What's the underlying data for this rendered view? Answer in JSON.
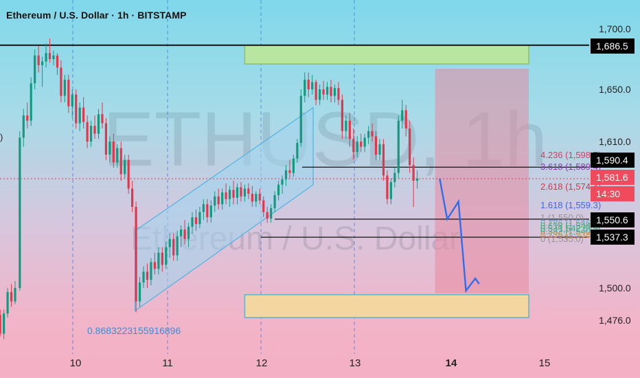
{
  "header": {
    "title": "Ethereum / U.S. Dollar · 1h · BITSTAMP"
  },
  "watermark": {
    "symbol": "ETHUSD, 1h",
    "name": "Ethereum / U.S. Dollar"
  },
  "colors": {
    "up": "#139a7e",
    "down": "#e2364b",
    "fib_blue": "#3b66f0",
    "zone_green": "#b8e6a0",
    "zone_orange": "#f4d6a0",
    "zone_red": "#e88aa0",
    "channel": "#9fd6ef"
  },
  "chart_data": {
    "type": "candlestick",
    "symbol": "ETHUSD",
    "interval": "1h",
    "exchange": "BITSTAMP",
    "x_ticks": [
      "10",
      "11",
      "12",
      "13",
      "14",
      "15"
    ],
    "y_ticks": [
      "1,700.0",
      "1,650.0",
      "1,610.0",
      "1,550.0",
      "1,500.0",
      "1,476.0"
    ],
    "ylim": [
      1460,
      1712
    ],
    "price_labels": [
      {
        "text": "1,686.5",
        "style": "black"
      },
      {
        "text": "1,590.4",
        "style": "black"
      },
      {
        "text": "1,581.6",
        "style": "red"
      },
      {
        "text": "14:30",
        "style": "red"
      },
      {
        "text": "1,550.6",
        "style": "black"
      },
      {
        "text": "1,537.3",
        "style": "black"
      }
    ],
    "fib_levels": [
      {
        "text": "4.236 (1,598.7)",
        "price": 1598.7,
        "color": "#d83a63"
      },
      {
        "text": "3.618 (1,589.4)",
        "price": 1589.4,
        "color": "#8a3ab0"
      },
      {
        "text": "2.618 (1,574.4)",
        "price": 1574.4,
        "color": "#e0304a"
      },
      {
        "text": "1.618 (1,559.3)",
        "price": 1559.3,
        "color": "#3b66f0"
      },
      {
        "text": "1 (1,550.0)",
        "price": 1550.0,
        "color": "#8a8a8a"
      },
      {
        "text": "0.786 (1,546.8)",
        "price": 1546.8,
        "color": "#5aa0c8"
      },
      {
        "text": "0.618 (1,544.3)",
        "price": 1544.3,
        "color": "#4cae4c"
      },
      {
        "text": "0.5 (1,542.5)",
        "price": 1542.5,
        "color": "#3aa58a"
      },
      {
        "text": "0.382 (1,540.7)",
        "price": 1540.7,
        "color": "#3aa58a"
      },
      {
        "text": "0.236 (1,538.6)",
        "price": 1538.6,
        "color": "#e88a2a"
      },
      {
        "text": "0 (1,535.0)",
        "price": 1535.0,
        "color": "#8a8a8a"
      }
    ],
    "annotation": "0.8683223155916896",
    "horizontal_lines": [
      1686.5,
      1590.4,
      1550.6,
      1537.3
    ],
    "current_price": 1581.6,
    "zones": [
      {
        "name": "supply",
        "x": [
          11.82,
          14.85
        ],
        "y": [
          1671,
          1686.5
        ]
      },
      {
        "name": "demand",
        "x": [
          11.82,
          14.85
        ],
        "y": [
          1478,
          1495
        ]
      },
      {
        "name": "short-target",
        "x": [
          13.85,
          14.85
        ],
        "y": [
          1496,
          1667
        ]
      }
    ],
    "channel": {
      "lower": [
        [
          10.65,
          1483
        ],
        [
          12.55,
          1577
        ]
      ],
      "upper": [
        [
          10.65,
          1542
        ],
        [
          12.55,
          1636
        ]
      ]
    },
    "projection_path": [
      [
        13.9,
        1581.6
      ],
      [
        13.98,
        1550.6
      ],
      [
        14.1,
        1564
      ],
      [
        14.18,
        1498
      ],
      [
        14.28,
        1507
      ],
      [
        14.32,
        1503
      ]
    ],
    "candles": [
      {
        "t": 8.93,
        "o": 1484,
        "h": 1490,
        "l": 1466,
        "c": 1476
      },
      {
        "t": 8.97,
        "o": 1476,
        "h": 1480,
        "l": 1463,
        "c": 1468
      },
      {
        "t": 9.01,
        "o": 1468,
        "h": 1488,
        "l": 1466,
        "c": 1484
      },
      {
        "t": 9.05,
        "o": 1484,
        "h": 1490,
        "l": 1470,
        "c": 1473
      },
      {
        "t": 9.09,
        "o": 1473,
        "h": 1478,
        "l": 1462,
        "c": 1470
      },
      {
        "t": 9.13,
        "o": 1470,
        "h": 1492,
        "l": 1468,
        "c": 1488
      },
      {
        "t": 9.17,
        "o": 1488,
        "h": 1494,
        "l": 1478,
        "c": 1480
      },
      {
        "t": 9.21,
        "o": 1480,
        "h": 1484,
        "l": 1464,
        "c": 1466
      },
      {
        "t": 9.25,
        "o": 1466,
        "h": 1484,
        "l": 1462,
        "c": 1481
      },
      {
        "t": 9.29,
        "o": 1481,
        "h": 1500,
        "l": 1478,
        "c": 1497
      },
      {
        "t": 9.33,
        "o": 1497,
        "h": 1503,
        "l": 1486,
        "c": 1490
      },
      {
        "t": 9.37,
        "o": 1490,
        "h": 1505,
        "l": 1488,
        "c": 1500
      },
      {
        "t": 9.42,
        "o": 1500,
        "h": 1618,
        "l": 1498,
        "c": 1613
      },
      {
        "t": 9.46,
        "o": 1613,
        "h": 1635,
        "l": 1606,
        "c": 1630
      },
      {
        "t": 9.5,
        "o": 1630,
        "h": 1640,
        "l": 1620,
        "c": 1626
      },
      {
        "t": 9.54,
        "o": 1626,
        "h": 1660,
        "l": 1622,
        "c": 1655
      },
      {
        "t": 9.58,
        "o": 1655,
        "h": 1683,
        "l": 1650,
        "c": 1678
      },
      {
        "t": 9.62,
        "o": 1678,
        "h": 1686,
        "l": 1664,
        "c": 1670
      },
      {
        "t": 9.66,
        "o": 1670,
        "h": 1677,
        "l": 1652,
        "c": 1673
      },
      {
        "t": 9.7,
        "o": 1673,
        "h": 1688,
        "l": 1668,
        "c": 1680
      },
      {
        "t": 9.74,
        "o": 1680,
        "h": 1692,
        "l": 1672,
        "c": 1675
      },
      {
        "t": 9.78,
        "o": 1675,
        "h": 1682,
        "l": 1670,
        "c": 1678
      },
      {
        "t": 9.82,
        "o": 1678,
        "h": 1680,
        "l": 1662,
        "c": 1668
      },
      {
        "t": 9.86,
        "o": 1668,
        "h": 1674,
        "l": 1640,
        "c": 1645
      },
      {
        "t": 9.9,
        "o": 1645,
        "h": 1662,
        "l": 1640,
        "c": 1658
      },
      {
        "t": 9.94,
        "o": 1658,
        "h": 1662,
        "l": 1632,
        "c": 1637
      },
      {
        "t": 9.98,
        "o": 1637,
        "h": 1650,
        "l": 1628,
        "c": 1646
      },
      {
        "t": 10.02,
        "o": 1646,
        "h": 1650,
        "l": 1620,
        "c": 1624
      },
      {
        "t": 10.06,
        "o": 1624,
        "h": 1640,
        "l": 1618,
        "c": 1636
      },
      {
        "t": 10.1,
        "o": 1636,
        "h": 1644,
        "l": 1620,
        "c": 1625
      },
      {
        "t": 10.14,
        "o": 1625,
        "h": 1630,
        "l": 1605,
        "c": 1610
      },
      {
        "t": 10.18,
        "o": 1610,
        "h": 1626,
        "l": 1606,
        "c": 1622
      },
      {
        "t": 10.22,
        "o": 1622,
        "h": 1630,
        "l": 1612,
        "c": 1616
      },
      {
        "t": 10.26,
        "o": 1616,
        "h": 1635,
        "l": 1612,
        "c": 1631
      },
      {
        "t": 10.3,
        "o": 1631,
        "h": 1640,
        "l": 1620,
        "c": 1624
      },
      {
        "t": 10.34,
        "o": 1624,
        "h": 1628,
        "l": 1596,
        "c": 1600
      },
      {
        "t": 10.38,
        "o": 1600,
        "h": 1614,
        "l": 1594,
        "c": 1610
      },
      {
        "t": 10.42,
        "o": 1610,
        "h": 1616,
        "l": 1590,
        "c": 1594
      },
      {
        "t": 10.46,
        "o": 1594,
        "h": 1608,
        "l": 1590,
        "c": 1605
      },
      {
        "t": 10.5,
        "o": 1605,
        "h": 1610,
        "l": 1580,
        "c": 1585
      },
      {
        "t": 10.54,
        "o": 1585,
        "h": 1600,
        "l": 1582,
        "c": 1596
      },
      {
        "t": 10.58,
        "o": 1596,
        "h": 1600,
        "l": 1570,
        "c": 1574
      },
      {
        "t": 10.62,
        "o": 1574,
        "h": 1580,
        "l": 1556,
        "c": 1560
      },
      {
        "t": 10.66,
        "o": 1560,
        "h": 1564,
        "l": 1482,
        "c": 1490
      },
      {
        "t": 10.7,
        "o": 1490,
        "h": 1508,
        "l": 1486,
        "c": 1504
      },
      {
        "t": 10.74,
        "o": 1504,
        "h": 1516,
        "l": 1500,
        "c": 1512
      },
      {
        "t": 10.78,
        "o": 1512,
        "h": 1518,
        "l": 1500,
        "c": 1506
      },
      {
        "t": 10.82,
        "o": 1506,
        "h": 1522,
        "l": 1502,
        "c": 1519
      },
      {
        "t": 10.86,
        "o": 1519,
        "h": 1526,
        "l": 1510,
        "c": 1514
      },
      {
        "t": 10.9,
        "o": 1514,
        "h": 1530,
        "l": 1510,
        "c": 1526
      },
      {
        "t": 10.94,
        "o": 1526,
        "h": 1530,
        "l": 1512,
        "c": 1517
      },
      {
        "t": 10.98,
        "o": 1517,
        "h": 1534,
        "l": 1514,
        "c": 1530
      },
      {
        "t": 11.02,
        "o": 1530,
        "h": 1540,
        "l": 1522,
        "c": 1536
      },
      {
        "t": 11.06,
        "o": 1536,
        "h": 1540,
        "l": 1520,
        "c": 1524
      },
      {
        "t": 11.1,
        "o": 1524,
        "h": 1542,
        "l": 1520,
        "c": 1538
      },
      {
        "t": 11.14,
        "o": 1538,
        "h": 1546,
        "l": 1530,
        "c": 1543
      },
      {
        "t": 11.18,
        "o": 1543,
        "h": 1550,
        "l": 1532,
        "c": 1536
      },
      {
        "t": 11.22,
        "o": 1536,
        "h": 1548,
        "l": 1530,
        "c": 1545
      },
      {
        "t": 11.26,
        "o": 1545,
        "h": 1556,
        "l": 1540,
        "c": 1552
      },
      {
        "t": 11.3,
        "o": 1552,
        "h": 1558,
        "l": 1542,
        "c": 1547
      },
      {
        "t": 11.34,
        "o": 1547,
        "h": 1560,
        "l": 1544,
        "c": 1556
      },
      {
        "t": 11.38,
        "o": 1556,
        "h": 1566,
        "l": 1550,
        "c": 1562
      },
      {
        "t": 11.42,
        "o": 1562,
        "h": 1566,
        "l": 1548,
        "c": 1552
      },
      {
        "t": 11.46,
        "o": 1552,
        "h": 1565,
        "l": 1548,
        "c": 1561
      },
      {
        "t": 11.5,
        "o": 1561,
        "h": 1572,
        "l": 1556,
        "c": 1568
      },
      {
        "t": 11.54,
        "o": 1568,
        "h": 1574,
        "l": 1558,
        "c": 1562
      },
      {
        "t": 11.58,
        "o": 1562,
        "h": 1574,
        "l": 1558,
        "c": 1571
      },
      {
        "t": 11.62,
        "o": 1571,
        "h": 1578,
        "l": 1562,
        "c": 1566
      },
      {
        "t": 11.66,
        "o": 1566,
        "h": 1576,
        "l": 1560,
        "c": 1573
      },
      {
        "t": 11.7,
        "o": 1573,
        "h": 1580,
        "l": 1562,
        "c": 1567
      },
      {
        "t": 11.74,
        "o": 1567,
        "h": 1578,
        "l": 1562,
        "c": 1575
      },
      {
        "t": 11.78,
        "o": 1575,
        "h": 1579,
        "l": 1564,
        "c": 1568
      },
      {
        "t": 11.82,
        "o": 1568,
        "h": 1577,
        "l": 1564,
        "c": 1574
      },
      {
        "t": 11.86,
        "o": 1574,
        "h": 1578,
        "l": 1566,
        "c": 1570
      },
      {
        "t": 11.9,
        "o": 1570,
        "h": 1576,
        "l": 1560,
        "c": 1564
      },
      {
        "t": 11.94,
        "o": 1564,
        "h": 1572,
        "l": 1560,
        "c": 1570
      },
      {
        "t": 11.98,
        "o": 1570,
        "h": 1574,
        "l": 1562,
        "c": 1565
      },
      {
        "t": 12.02,
        "o": 1565,
        "h": 1568,
        "l": 1552,
        "c": 1556
      },
      {
        "t": 12.06,
        "o": 1556,
        "h": 1560,
        "l": 1548,
        "c": 1551
      },
      {
        "t": 12.1,
        "o": 1551,
        "h": 1562,
        "l": 1548,
        "c": 1559
      },
      {
        "t": 12.14,
        "o": 1559,
        "h": 1572,
        "l": 1556,
        "c": 1569
      },
      {
        "t": 12.18,
        "o": 1569,
        "h": 1580,
        "l": 1565,
        "c": 1577
      },
      {
        "t": 12.22,
        "o": 1577,
        "h": 1584,
        "l": 1570,
        "c": 1581
      },
      {
        "t": 12.26,
        "o": 1581,
        "h": 1592,
        "l": 1576,
        "c": 1588
      },
      {
        "t": 12.3,
        "o": 1588,
        "h": 1596,
        "l": 1582,
        "c": 1586
      },
      {
        "t": 12.34,
        "o": 1586,
        "h": 1600,
        "l": 1583,
        "c": 1597
      },
      {
        "t": 12.38,
        "o": 1597,
        "h": 1612,
        "l": 1594,
        "c": 1609
      },
      {
        "t": 12.42,
        "o": 1609,
        "h": 1650,
        "l": 1606,
        "c": 1645
      },
      {
        "t": 12.46,
        "o": 1645,
        "h": 1664,
        "l": 1640,
        "c": 1658
      },
      {
        "t": 12.5,
        "o": 1658,
        "h": 1664,
        "l": 1644,
        "c": 1650
      },
      {
        "t": 12.54,
        "o": 1650,
        "h": 1662,
        "l": 1646,
        "c": 1656
      },
      {
        "t": 12.58,
        "o": 1656,
        "h": 1658,
        "l": 1638,
        "c": 1642
      },
      {
        "t": 12.62,
        "o": 1642,
        "h": 1654,
        "l": 1638,
        "c": 1650
      },
      {
        "t": 12.66,
        "o": 1650,
        "h": 1657,
        "l": 1642,
        "c": 1646
      },
      {
        "t": 12.7,
        "o": 1646,
        "h": 1656,
        "l": 1642,
        "c": 1652
      },
      {
        "t": 12.74,
        "o": 1652,
        "h": 1658,
        "l": 1640,
        "c": 1645
      },
      {
        "t": 12.78,
        "o": 1645,
        "h": 1654,
        "l": 1640,
        "c": 1651
      },
      {
        "t": 12.82,
        "o": 1651,
        "h": 1656,
        "l": 1638,
        "c": 1642
      },
      {
        "t": 12.86,
        "o": 1642,
        "h": 1646,
        "l": 1612,
        "c": 1618
      },
      {
        "t": 12.9,
        "o": 1618,
        "h": 1630,
        "l": 1612,
        "c": 1626
      },
      {
        "t": 12.94,
        "o": 1626,
        "h": 1632,
        "l": 1606,
        "c": 1612
      },
      {
        "t": 12.98,
        "o": 1612,
        "h": 1620,
        "l": 1596,
        "c": 1602
      },
      {
        "t": 13.02,
        "o": 1602,
        "h": 1614,
        "l": 1598,
        "c": 1610
      },
      {
        "t": 13.06,
        "o": 1610,
        "h": 1616,
        "l": 1602,
        "c": 1606
      },
      {
        "t": 13.1,
        "o": 1606,
        "h": 1616,
        "l": 1602,
        "c": 1613
      },
      {
        "t": 13.14,
        "o": 1613,
        "h": 1622,
        "l": 1608,
        "c": 1618
      },
      {
        "t": 13.18,
        "o": 1618,
        "h": 1624,
        "l": 1610,
        "c": 1614
      },
      {
        "t": 13.22,
        "o": 1614,
        "h": 1618,
        "l": 1596,
        "c": 1600
      },
      {
        "t": 13.26,
        "o": 1600,
        "h": 1612,
        "l": 1596,
        "c": 1608
      },
      {
        "t": 13.3,
        "o": 1608,
        "h": 1612,
        "l": 1580,
        "c": 1584
      },
      {
        "t": 13.34,
        "o": 1584,
        "h": 1588,
        "l": 1562,
        "c": 1566
      },
      {
        "t": 13.38,
        "o": 1566,
        "h": 1582,
        "l": 1562,
        "c": 1579
      },
      {
        "t": 13.42,
        "o": 1579,
        "h": 1590,
        "l": 1575,
        "c": 1586
      },
      {
        "t": 13.46,
        "o": 1586,
        "h": 1630,
        "l": 1582,
        "c": 1626
      },
      {
        "t": 13.5,
        "o": 1626,
        "h": 1642,
        "l": 1620,
        "c": 1634
      },
      {
        "t": 13.54,
        "o": 1634,
        "h": 1638,
        "l": 1614,
        "c": 1620
      },
      {
        "t": 13.58,
        "o": 1620,
        "h": 1626,
        "l": 1586,
        "c": 1592
      },
      {
        "t": 13.62,
        "o": 1592,
        "h": 1598,
        "l": 1560,
        "c": 1580
      },
      {
        "t": 13.66,
        "o": 1580,
        "h": 1588,
        "l": 1574,
        "c": 1581.6
      }
    ]
  }
}
